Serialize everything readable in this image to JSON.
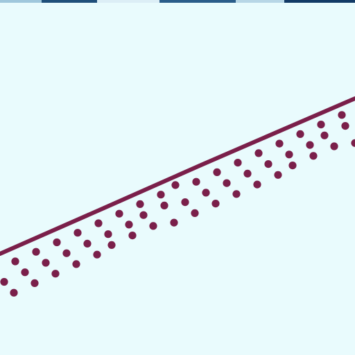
{
  "colors": {
    "background": "#e9fbfd",
    "line": "#7a1f4a",
    "dots": "#7a1f4a",
    "strip_colors": [
      "#9fc7dc",
      "#1f4f7a",
      "#dceef6",
      "#2a5d8a",
      "#b7d6e6",
      "#123a66"
    ]
  }
}
